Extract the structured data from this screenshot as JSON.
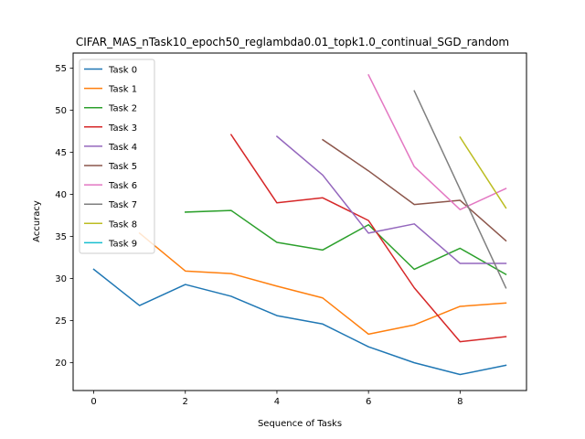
{
  "chart_data": {
    "type": "line",
    "title": "CIFAR_MAS_nTask10_epoch50_reglambda0.01_topk1.0_continual_SGD_random",
    "xlabel": "Sequence of Tasks",
    "ylabel": "Accuracy",
    "xlim": [
      -0.45,
      9.45
    ],
    "ylim": [
      16.7,
      56.8
    ],
    "xticks": [
      0,
      2,
      4,
      6,
      8
    ],
    "yticks": [
      20,
      25,
      30,
      35,
      40,
      45,
      50,
      55
    ],
    "legend_position": "upper-left",
    "series": [
      {
        "name": "Task 0",
        "color": "#1f77b4",
        "x": [
          0,
          1,
          2,
          3,
          4,
          5,
          6,
          7,
          8,
          9
        ],
        "values": [
          31.1,
          26.8,
          29.3,
          27.9,
          25.6,
          24.6,
          21.9,
          20.0,
          18.6,
          19.7
        ]
      },
      {
        "name": "Task 1",
        "color": "#ff7f0e",
        "x": [
          1,
          2,
          3,
          4,
          5,
          6,
          7,
          8,
          9
        ],
        "values": [
          35.4,
          30.9,
          30.6,
          29.1,
          27.7,
          23.4,
          24.5,
          26.7,
          27.1
        ]
      },
      {
        "name": "Task 2",
        "color": "#2ca02c",
        "x": [
          2,
          3,
          4,
          5,
          6,
          7,
          8,
          9
        ],
        "values": [
          37.9,
          38.1,
          34.3,
          33.4,
          36.4,
          31.1,
          33.6,
          30.5
        ]
      },
      {
        "name": "Task 3",
        "color": "#d62728",
        "x": [
          3,
          4,
          5,
          6,
          7,
          8,
          9
        ],
        "values": [
          47.1,
          39.0,
          39.6,
          36.9,
          28.9,
          22.5,
          23.1
        ]
      },
      {
        "name": "Task 4",
        "color": "#9467bd",
        "x": [
          4,
          5,
          6,
          7,
          8,
          9
        ],
        "values": [
          46.9,
          42.3,
          35.4,
          36.5,
          31.8,
          31.8
        ]
      },
      {
        "name": "Task 5",
        "color": "#8c564b",
        "x": [
          5,
          6,
          7,
          8,
          9
        ],
        "values": [
          46.5,
          42.8,
          38.8,
          39.3,
          34.5
        ]
      },
      {
        "name": "Task 6",
        "color": "#e377c2",
        "x": [
          6,
          7,
          8,
          9
        ],
        "values": [
          54.2,
          43.3,
          38.2,
          40.7
        ]
      },
      {
        "name": "Task 7",
        "color": "#7f7f7f",
        "x": [
          7,
          8,
          9
        ],
        "values": [
          52.3,
          40.6,
          28.9
        ]
      },
      {
        "name": "Task 8",
        "color": "#bcbd22",
        "x": [
          8,
          9
        ],
        "values": [
          46.8,
          38.4
        ]
      },
      {
        "name": "Task 9",
        "color": "#17becf",
        "x": [
          9
        ],
        "values": [
          38.4
        ]
      }
    ]
  }
}
